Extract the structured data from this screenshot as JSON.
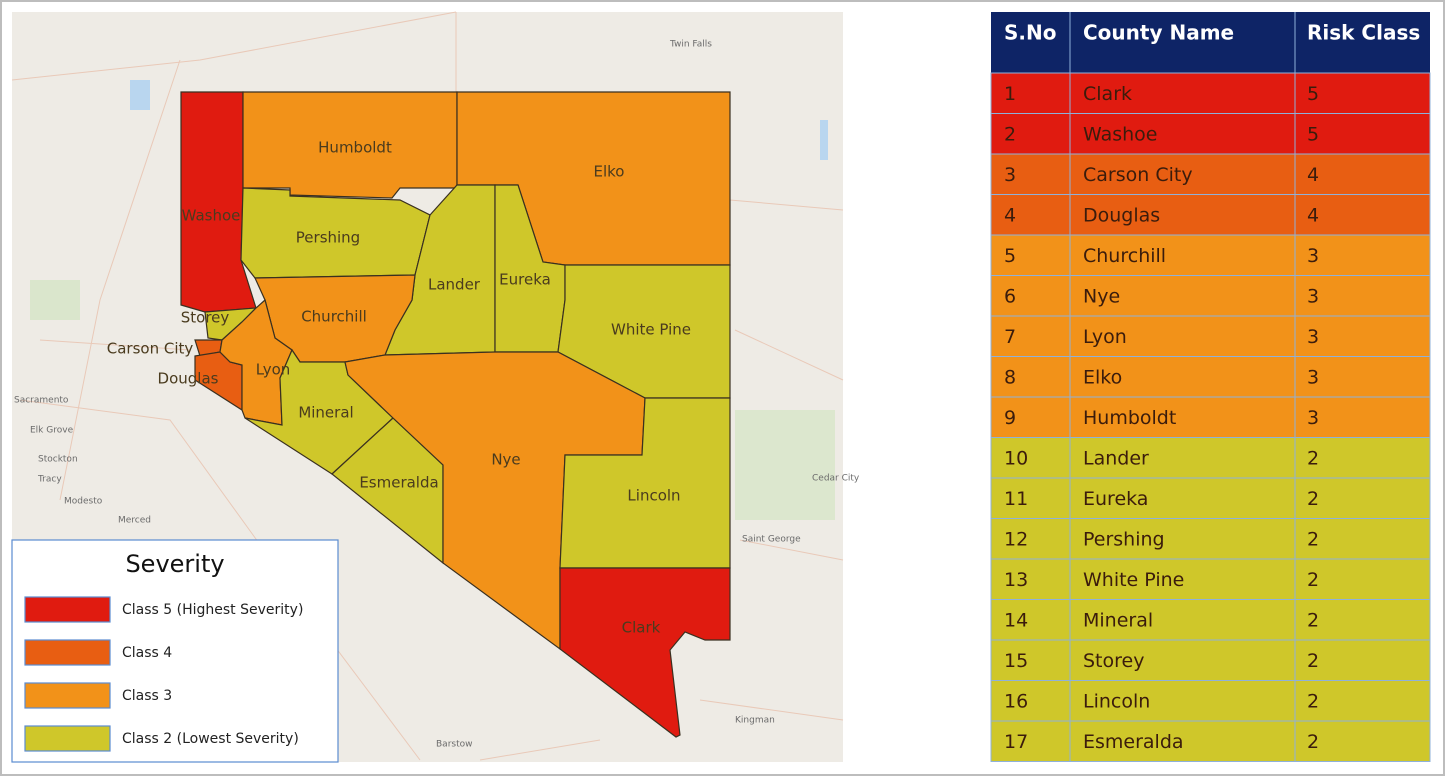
{
  "map": {
    "counties": [
      {
        "name": "Washoe"
      },
      {
        "name": "Humboldt"
      },
      {
        "name": "Elko"
      },
      {
        "name": "Pershing"
      },
      {
        "name": "Lander"
      },
      {
        "name": "Eureka"
      },
      {
        "name": "White Pine"
      },
      {
        "name": "Churchill"
      },
      {
        "name": "Storey"
      },
      {
        "name": "Carson City"
      },
      {
        "name": "Douglas"
      },
      {
        "name": "Lyon"
      },
      {
        "name": "Mineral"
      },
      {
        "name": "Esmeralda"
      },
      {
        "name": "Nye"
      },
      {
        "name": "Lincoln"
      },
      {
        "name": "Clark"
      }
    ],
    "places": [
      "Twin Falls",
      "Sacramento",
      "Elk Grove",
      "Stockton",
      "Tracy",
      "Modesto",
      "Merced",
      "Saint George",
      "Cedar City",
      "Kingman",
      "Barstow"
    ]
  },
  "legend": {
    "title": "Severity",
    "items": [
      {
        "class": 5,
        "label": "Class 5 (Highest Severity)",
        "color": "#e01b10"
      },
      {
        "class": 4,
        "label": "Class 4",
        "color": "#e85e12"
      },
      {
        "class": 3,
        "label": "Class 3",
        "color": "#f29219"
      },
      {
        "class": 2,
        "label": "Class 2 (Lowest Severity)",
        "color": "#cfc72a"
      }
    ]
  },
  "table": {
    "header_color": "#0e2466",
    "columns": [
      "S.No",
      "County Name",
      "Risk Class"
    ],
    "rows": [
      [
        1,
        "Clark",
        5
      ],
      [
        2,
        "Washoe",
        5
      ],
      [
        3,
        "Carson City",
        4
      ],
      [
        4,
        "Douglas",
        4
      ],
      [
        5,
        "Churchill",
        3
      ],
      [
        6,
        "Nye",
        3
      ],
      [
        7,
        "Lyon",
        3
      ],
      [
        8,
        "Elko",
        3
      ],
      [
        9,
        "Humboldt",
        3
      ],
      [
        10,
        "Lander",
        2
      ],
      [
        11,
        "Eureka",
        2
      ],
      [
        12,
        "Pershing",
        2
      ],
      [
        13,
        "White Pine",
        2
      ],
      [
        14,
        "Mineral",
        2
      ],
      [
        15,
        "Storey",
        2
      ],
      [
        16,
        "Lincoln",
        2
      ],
      [
        17,
        "Esmeralda",
        2
      ]
    ]
  }
}
